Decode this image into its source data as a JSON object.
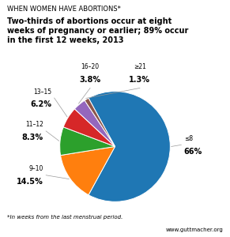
{
  "chart_data": {
    "type": "pie",
    "title": "WHEN WOMEN HAVE ABORTIONS*",
    "subtitle": "Two-thirds of abortions occur at eight\nweeks of pregnancy or earlier; 89% occur\nin the first 12 weeks, 2013",
    "categories": [
      "≤8",
      "9–10",
      "11–12",
      "13–15",
      "16–20",
      "≥21"
    ],
    "values": [
      66.0,
      14.5,
      8.3,
      6.2,
      3.8,
      1.3
    ],
    "value_labels": [
      "66%",
      "14.5%",
      "8.3%",
      "6.2%",
      "3.8%",
      "1.3%"
    ],
    "annotations": [
      "*In weeks from the last menstrual period.",
      "www.guttmacher.org"
    ]
  }
}
